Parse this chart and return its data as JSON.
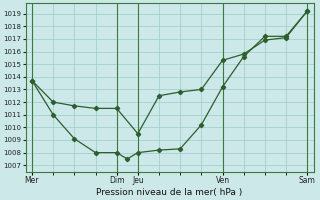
{
  "xlabel": "Pression niveau de la mer( hPa )",
  "ylim": [
    1006.5,
    1019.8
  ],
  "yticks": [
    1007,
    1008,
    1009,
    1010,
    1011,
    1012,
    1013,
    1014,
    1015,
    1016,
    1017,
    1018,
    1019
  ],
  "bg_color": "#cce8e8",
  "grid_color": "#99cccc",
  "line_color": "#2d5e2d",
  "vline_color": "#3a7a3a",
  "xtick_labels": [
    "Mer",
    "Dim",
    "Jeu",
    "Ven",
    "Sam"
  ],
  "xtick_positions": [
    0,
    4,
    5,
    9,
    13
  ],
  "vline_positions": [
    0,
    4,
    5,
    9,
    13
  ],
  "xlim": [
    -0.3,
    13.3
  ],
  "line1_x": [
    0,
    1,
    2,
    3,
    4,
    5,
    6,
    7,
    8,
    9,
    10,
    11,
    12,
    13
  ],
  "line1_y": [
    1013.7,
    1012.0,
    1011.7,
    1011.5,
    1011.5,
    1009.5,
    1012.5,
    1012.8,
    1013.0,
    1015.3,
    1015.8,
    1016.9,
    1017.1,
    1019.2
  ],
  "line2_x": [
    0,
    1,
    2,
    3,
    4,
    4.5,
    5,
    6,
    7,
    8,
    9,
    10,
    11,
    12,
    13
  ],
  "line2_y": [
    1013.7,
    1011.0,
    1009.1,
    1008.0,
    1008.0,
    1007.5,
    1008.0,
    1008.2,
    1008.3,
    1010.2,
    1013.2,
    1015.6,
    1017.2,
    1017.2,
    1019.2
  ]
}
